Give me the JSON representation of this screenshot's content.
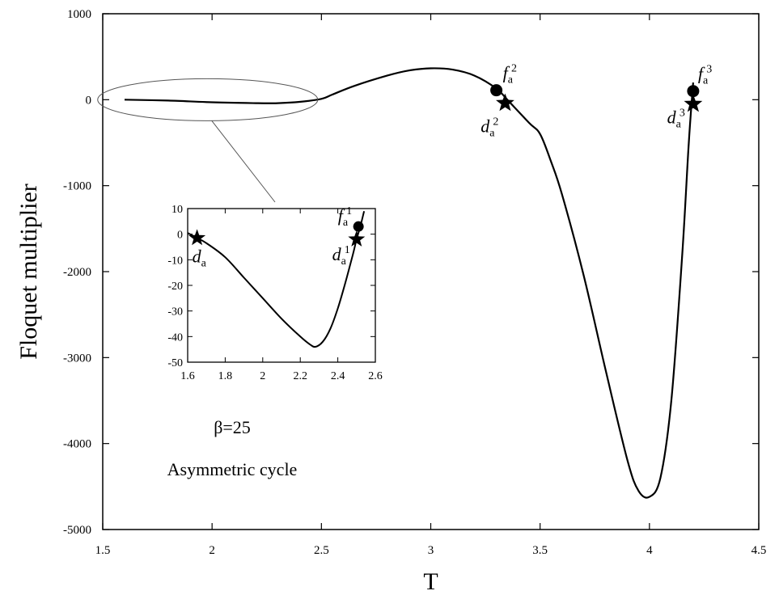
{
  "chart_data": [
    {
      "type": "line",
      "title": "",
      "xlabel": "T",
      "ylabel": "Floquet multiplier",
      "xlim": [
        1.5,
        4.5
      ],
      "ylim": [
        -5000,
        1000
      ],
      "x_ticks": [
        1.5,
        2,
        2.5,
        3,
        3.5,
        4,
        4.5
      ],
      "x_tick_labels": [
        "1.5",
        "2",
        "2.5",
        "3",
        "3.5",
        "4",
        "4.5"
      ],
      "y_ticks": [
        1000,
        0,
        -1000,
        -2000,
        -3000,
        -4000,
        -5000
      ],
      "y_tick_labels": [
        "1000",
        "0",
        "-1000",
        "-2000",
        "-3000",
        "-4000",
        "-5000"
      ],
      "grid": false,
      "series": [
        {
          "name": "",
          "x": [
            1.6,
            1.8,
            2.0,
            2.2,
            2.3,
            2.4,
            2.5,
            2.55,
            2.65,
            2.8,
            2.9,
            3.0,
            3.1,
            3.2,
            3.3,
            3.35,
            3.45,
            3.5,
            3.55,
            3.6,
            3.7,
            3.8,
            3.9,
            3.95,
            4.0,
            4.05,
            4.1,
            4.15,
            4.18,
            4.2
          ],
          "y": [
            0,
            -10,
            -30,
            -40,
            -40,
            -25,
            10,
            60,
            160,
            280,
            340,
            365,
            350,
            280,
            130,
            0,
            -270,
            -400,
            -720,
            -1100,
            -2050,
            -3150,
            -4200,
            -4550,
            -4620,
            -4400,
            -3500,
            -1800,
            -500,
            200
          ]
        }
      ],
      "points": [
        {
          "label": "f",
          "sub": "a",
          "sup": "2",
          "marker": "circle",
          "x": 3.3,
          "y": 110
        },
        {
          "label": "d",
          "sub": "a",
          "sup": "2",
          "marker": "star",
          "x": 3.34,
          "y": -40
        },
        {
          "label": "f",
          "sub": "a",
          "sup": "3",
          "marker": "circle",
          "x": 4.2,
          "y": 100
        },
        {
          "label": "d",
          "sub": "a",
          "sup": "3",
          "marker": "star",
          "x": 4.2,
          "y": -50
        }
      ],
      "annotations": [
        "β=25",
        "Asymmetric cycle"
      ]
    },
    {
      "type": "line",
      "title": "",
      "xlabel": "",
      "ylabel": "",
      "xlim": [
        1.6,
        2.6
      ],
      "ylim": [
        -50,
        10
      ],
      "x_ticks": [
        1.6,
        1.8,
        2,
        2.2,
        2.4,
        2.6
      ],
      "x_tick_labels": [
        "1.6",
        "1.8",
        "2",
        "2.2",
        "2.4",
        "2.6"
      ],
      "y_ticks": [
        10,
        0,
        -10,
        -20,
        -30,
        -40,
        -50
      ],
      "y_tick_labels": [
        "10",
        "0",
        "-10",
        "-20",
        "-30",
        "-40",
        "-50"
      ],
      "grid": false,
      "series": [
        {
          "name": "",
          "x": [
            1.6,
            1.65,
            1.7,
            1.8,
            1.9,
            2.0,
            2.1,
            2.2,
            2.25,
            2.28,
            2.32,
            2.36,
            2.4,
            2.44,
            2.48,
            2.5,
            2.52,
            2.54
          ],
          "y": [
            0.5,
            -1.5,
            -3.5,
            -9,
            -17,
            -25,
            -33,
            -40,
            -43,
            -44,
            -42,
            -37,
            -29,
            -19,
            -8,
            -2,
            3,
            9
          ]
        }
      ],
      "points": [
        {
          "label": "d",
          "sub": "a",
          "sup": "",
          "marker": "star",
          "x": 1.65,
          "y": -1.5
        },
        {
          "label": "f",
          "sub": "a",
          "sup": "1",
          "marker": "circle",
          "x": 2.51,
          "y": 3
        },
        {
          "label": "d",
          "sub": "a",
          "sup": "1",
          "marker": "star",
          "x": 2.5,
          "y": -2
        }
      ]
    }
  ]
}
